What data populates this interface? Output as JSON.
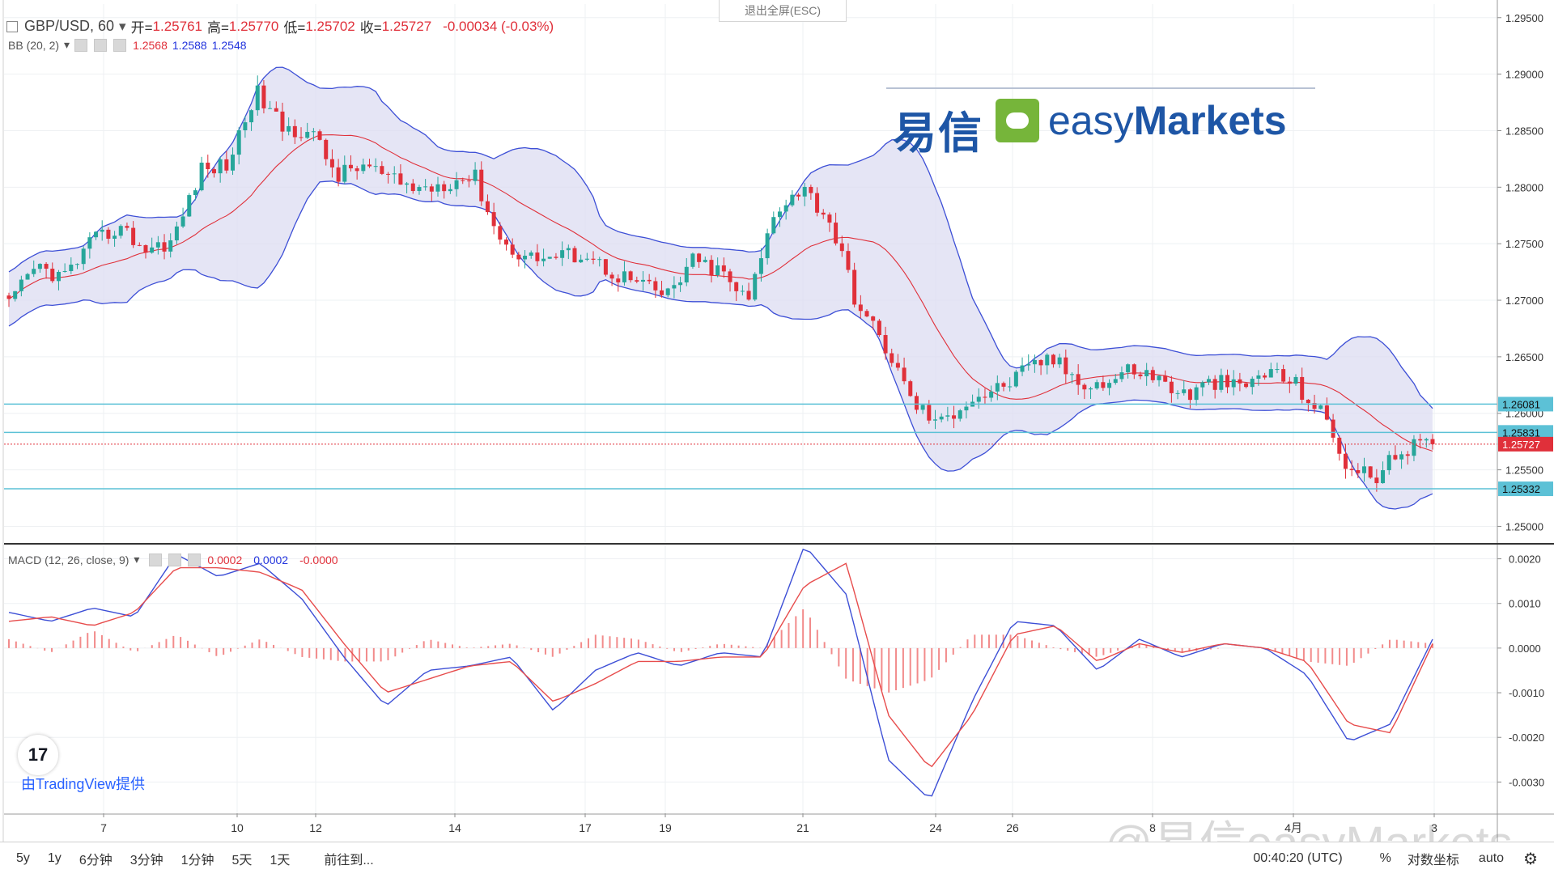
{
  "header": {
    "symbol": "GBP/USD, 60",
    "open_label": "开=",
    "open": "1.25761",
    "high_label": "高=",
    "high": "1.25770",
    "low_label": "低=",
    "low": "1.25702",
    "close_label": "收=",
    "close": "1.25727",
    "change": "-0.00034 (-0.03%)",
    "exit_fullscreen": "退出全屏(ESC)"
  },
  "bb": {
    "label": "BB (20, 2)",
    "v1": "1.2568",
    "v2": "1.2588",
    "v3": "1.2548"
  },
  "macd": {
    "label": "MACD (12, 26, close, 9)",
    "v1": "0.0002",
    "v2": "0.0002",
    "v3": "-0.0000"
  },
  "logo": {
    "cn": "易信",
    "en_light": "easy",
    "en_bold": "Markets"
  },
  "attribution": {
    "tv_mark": "17",
    "text": "由TradingView提供"
  },
  "watermark": "@易信easyMarkets",
  "bottombar": {
    "ranges": [
      "5y",
      "1y",
      "6分钟",
      "3分钟",
      "1分钟",
      "5天",
      "1天"
    ],
    "goto": "前往到...",
    "time": "00:40:20 (UTC)",
    "percent": "%",
    "log": "对数坐标",
    "auto": "auto"
  },
  "colors": {
    "up": "#26a69a",
    "down": "#e0303a",
    "bb_line": "#3d4fd6",
    "bb_fill": "#dcdcf2",
    "hline": "#5cc1d6",
    "macd_line": "#3d4fd6",
    "signal_line": "#e74c4c",
    "hist": "#f28b8b"
  },
  "chart_data": [
    {
      "type": "candlestick",
      "title": "GBP/USD, 60",
      "x_tick_labels": [
        "7",
        "10",
        "12",
        "14",
        "17",
        "19",
        "21",
        "24",
        "26",
        "8",
        "4月",
        "3"
      ],
      "price_axis_labels": [
        "1.29500",
        "1.29000",
        "1.28500",
        "1.28000",
        "1.27500",
        "1.27000",
        "1.26500",
        "1.26000",
        "1.25500",
        "1.25000"
      ],
      "ylim": [
        1.2486,
        1.2962
      ],
      "close_path": [
        1.2695,
        1.273,
        1.272,
        1.275,
        1.2765,
        1.2745,
        1.2753,
        1.2815,
        1.282,
        1.2885,
        1.2852,
        1.285,
        1.281,
        1.282,
        1.2805,
        1.2798,
        1.2805,
        1.281,
        1.275,
        1.2738,
        1.2738,
        1.2742,
        1.2725,
        1.2715,
        1.2703,
        1.2735,
        1.2725,
        1.2698,
        1.2782,
        1.28,
        1.277,
        1.2695,
        1.266,
        1.261,
        1.259,
        1.2612,
        1.262,
        1.2635,
        1.265,
        1.263,
        1.2625,
        1.264,
        1.263,
        1.2615,
        1.2628,
        1.2622,
        1.2638,
        1.2625,
        1.2598,
        1.2548,
        1.2545,
        1.257,
        1.2573
      ],
      "horizontal_levels": [
        1.26081,
        1.25831,
        1.25332
      ],
      "current_price": 1.25727
    },
    {
      "type": "line",
      "title": "MACD (12, 26, close, 9)",
      "axis_labels": [
        "0.0020",
        "0.0010",
        "0.0000",
        "-0.0010",
        "-0.0020",
        "-0.0030"
      ],
      "ylim": [
        -0.0037,
        0.0023
      ],
      "series": [
        {
          "name": "MACD",
          "values": [
            0.0008,
            0.0006,
            0.0009,
            0.0007,
            0.0021,
            0.0016,
            0.0019,
            0.0011,
            -0.0002,
            -0.0013,
            -0.0005,
            -0.0004,
            -0.0002,
            -0.0014,
            -0.0005,
            -0.0001,
            -0.0004,
            -0.0001,
            -0.0002,
            0.0023,
            0.0012,
            -0.0025,
            -0.0034,
            -0.0012,
            0.0006,
            0.0005,
            -0.0005,
            0.0002,
            -0.0002,
            0.0001,
            0.0,
            -0.0006,
            -0.0021,
            -0.0017,
            0.0002
          ]
        },
        {
          "name": "Signal",
          "values": [
            0.0006,
            0.0007,
            0.0005,
            0.0008,
            0.0018,
            0.0018,
            0.0017,
            0.0013,
            0.0001,
            -0.001,
            -0.0007,
            -0.0004,
            -0.0003,
            -0.0012,
            -0.0008,
            -0.0003,
            -0.0003,
            -0.0002,
            -0.0002,
            0.0014,
            0.0019,
            -0.0015,
            -0.0027,
            -0.0015,
            0.0003,
            0.0005,
            -0.0003,
            0.0001,
            -0.0001,
            0.0001,
            0.0,
            -0.0003,
            -0.0017,
            -0.0019,
            0.0001
          ]
        },
        {
          "name": "Histogram",
          "values": [
            0.0002,
            -0.0001,
            0.0004,
            -0.0001,
            0.0003,
            -0.0002,
            0.0002,
            -0.0002,
            -0.0003,
            -0.0003,
            0.0002,
            0.0,
            0.0001,
            -0.0002,
            0.0003,
            0.0002,
            -0.0001,
            0.0001,
            0.0,
            0.0009,
            -0.0007,
            -0.001,
            -0.0007,
            0.0003,
            0.0003,
            0.0,
            -0.0002,
            0.0001,
            -0.0001,
            0.0,
            0.0,
            -0.0003,
            -0.0004,
            0.0002,
            0.0001
          ]
        }
      ]
    }
  ]
}
